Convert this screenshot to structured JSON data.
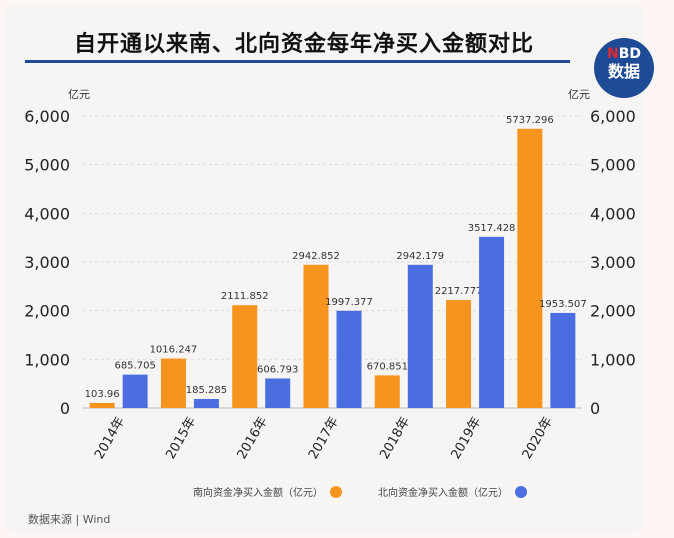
{
  "title": "自开通以来南、北向资金每年净买入金额对比",
  "logo": {
    "top_n": "N",
    "top_rest": "BD",
    "bottom": "数据"
  },
  "source": "数据来源 | Wind",
  "colors": {
    "south": "#f7941d",
    "north": "#4a6ee0",
    "title_rule": "#1e4b96"
  },
  "chart_data": {
    "type": "bar",
    "title": "自开通以来南、北向资金每年净买入金额对比",
    "categories": [
      "2014年",
      "2015年",
      "2016年",
      "2017年",
      "2018年",
      "2019年",
      "2020年"
    ],
    "series": [
      {
        "name": "南向资金净买入金额（亿元）",
        "color": "#f7941d",
        "values": [
          103.96,
          1016.247,
          2111.852,
          2942.852,
          670.851,
          2217.777,
          5737.296
        ],
        "labels": [
          "103.96",
          "1016.247",
          "2111.852",
          "2942.852",
          "670.851",
          "2217.777",
          "5737.296"
        ]
      },
      {
        "name": "北向资金净买入金额（亿元）",
        "color": "#4a6ee0",
        "values": [
          685.705,
          185.285,
          606.793,
          1997.377,
          2942.179,
          3517.428,
          1953.507
        ],
        "labels": [
          "685.705",
          "185.285",
          "606.793",
          "1997.377",
          "2942.179",
          "3517.428",
          "1953.507"
        ]
      }
    ],
    "yunit_left": "亿元",
    "yunit_right": "亿元",
    "ylim": [
      0,
      6000
    ],
    "yticks": [
      "0",
      "1,000",
      "2,000",
      "3,000",
      "4,000",
      "5,000",
      "6,000"
    ],
    "grid": true,
    "legend": "bottom"
  }
}
